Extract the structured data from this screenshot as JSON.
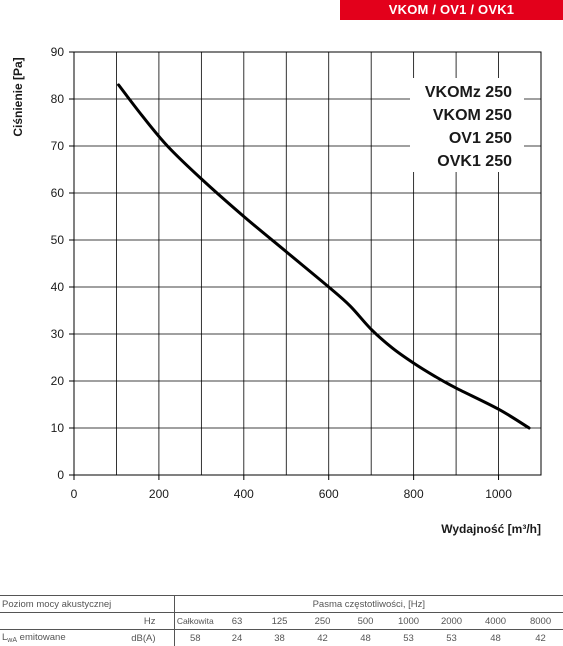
{
  "header": {
    "title": "VKOM / OV1 / OVK1"
  },
  "chart_data": {
    "type": "line",
    "xlabel": "Wydajność [m³/h]",
    "ylabel": "Ciśnienie [Pa]",
    "xlim": [
      0,
      1100
    ],
    "ylim": [
      0,
      90
    ],
    "x_ticks": [
      0,
      200,
      400,
      600,
      800,
      1000
    ],
    "y_ticks": [
      0,
      10,
      20,
      30,
      40,
      50,
      60,
      70,
      80,
      90
    ],
    "grid": true,
    "series_labels": [
      "VKOMz 250",
      "VKOM 250",
      "OV1 250",
      "OVK1 250"
    ],
    "series": [
      {
        "x": [
          105,
          160,
          220,
          300,
          400,
          500,
          600,
          650,
          700,
          750,
          800,
          850,
          900,
          1000,
          1072
        ],
        "y": [
          83,
          76.5,
          70,
          63,
          55,
          47.5,
          40,
          36,
          31,
          27,
          23.8,
          21,
          18.5,
          14,
          10
        ]
      }
    ]
  },
  "acoustic_table": {
    "section_label": "Poziom mocy akustycznej",
    "bands_header": "Pasma częstotliwości, [Hz]",
    "hz_label": "Hz",
    "columns": [
      "Całkowita",
      "63",
      "125",
      "250",
      "500",
      "1000",
      "2000",
      "4000",
      "8000"
    ],
    "row_label_main": "L",
    "row_label_sub": "wA",
    "row_label_rest": " emitowane",
    "unit": "dB(A)",
    "values": [
      "58",
      "24",
      "38",
      "42",
      "48",
      "53",
      "53",
      "48",
      "42"
    ]
  }
}
